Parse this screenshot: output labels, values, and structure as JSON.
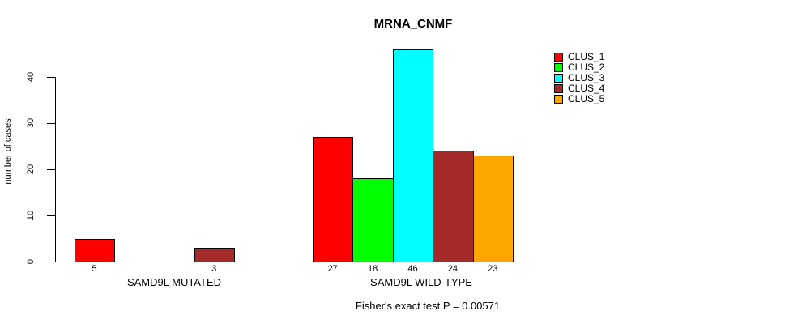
{
  "chart_data": {
    "type": "bar",
    "title": "MRNA_CNMF",
    "ylabel": "number of cases",
    "yticks": [
      0,
      10,
      20,
      30,
      40
    ],
    "ylim": [
      0,
      46
    ],
    "grid": false,
    "legend_position": "right",
    "categories": [
      "CLUS_1",
      "CLUS_2",
      "CLUS_3",
      "CLUS_4",
      "CLUS_5"
    ],
    "legend": [
      {
        "label": "CLUS_1",
        "color": "#FF0000"
      },
      {
        "label": "CLUS_2",
        "color": "#00FF00"
      },
      {
        "label": "CLUS_3",
        "color": "#00FFFF"
      },
      {
        "label": "CLUS_4",
        "color": "#A52A2A"
      },
      {
        "label": "CLUS_5",
        "color": "#FFA500"
      }
    ],
    "groups": [
      {
        "label": "SAMD9L MUTATED",
        "values": [
          5,
          0,
          0,
          3,
          0
        ]
      },
      {
        "label": "SAMD9L WILD-TYPE",
        "values": [
          27,
          18,
          46,
          24,
          23
        ]
      }
    ],
    "annotation": "Fisher's exact test P = 0.00571"
  }
}
